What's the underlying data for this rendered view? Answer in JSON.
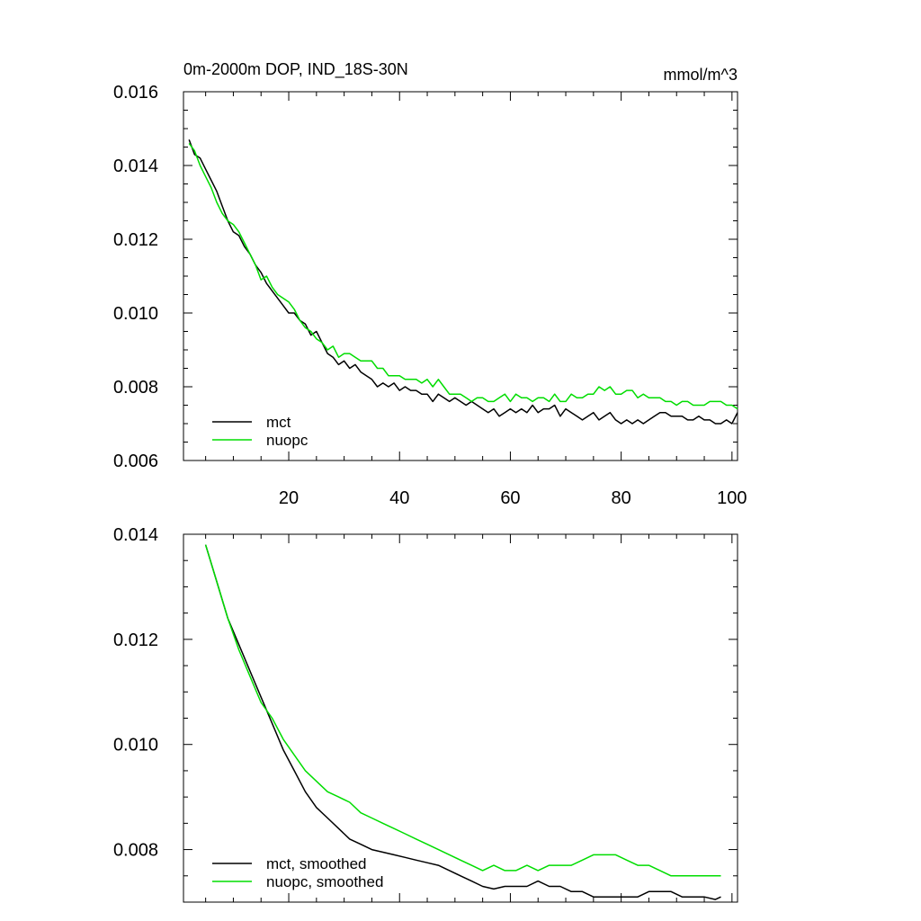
{
  "chart_data": [
    {
      "type": "line",
      "title": "0m-2000m DOP, IND_18S-30N",
      "units": "mmol/m^3",
      "xlim": [
        1,
        101
      ],
      "ylim": [
        0.006,
        0.016
      ],
      "xticks": [
        20,
        40,
        60,
        80,
        100
      ],
      "xtick_labels": [
        "20",
        "40",
        "60",
        "80",
        "100"
      ],
      "yticks": [
        0.006,
        0.008,
        0.01,
        0.012,
        0.014,
        0.016
      ],
      "ytick_labels": [
        "0.006",
        "0.008",
        "0.010",
        "0.012",
        "0.014",
        "0.016"
      ],
      "legend_position": "bottom-left",
      "series": [
        {
          "name": "mct",
          "color": "#000000",
          "x": [
            2,
            3,
            4,
            5,
            6,
            7,
            8,
            9,
            10,
            11,
            12,
            13,
            14,
            15,
            16,
            17,
            18,
            19,
            20,
            21,
            22,
            23,
            24,
            25,
            26,
            27,
            28,
            29,
            30,
            31,
            32,
            33,
            34,
            35,
            36,
            37,
            38,
            39,
            40,
            41,
            42,
            43,
            44,
            45,
            46,
            47,
            48,
            49,
            50,
            51,
            52,
            53,
            54,
            55,
            56,
            57,
            58,
            59,
            60,
            61,
            62,
            63,
            64,
            65,
            66,
            67,
            68,
            69,
            70,
            71,
            72,
            73,
            74,
            75,
            76,
            77,
            78,
            79,
            80,
            81,
            82,
            83,
            84,
            85,
            86,
            87,
            88,
            89,
            90,
            91,
            92,
            93,
            94,
            95,
            96,
            97,
            98,
            99,
            100,
            101
          ],
          "y": [
            0.0147,
            0.0143,
            0.0142,
            0.0139,
            0.0136,
            0.0133,
            0.0129,
            0.0125,
            0.0122,
            0.0121,
            0.0118,
            0.0116,
            0.0113,
            0.0111,
            0.0108,
            0.0106,
            0.0104,
            0.0102,
            0.01,
            0.01,
            0.0098,
            0.0097,
            0.0094,
            0.0095,
            0.0092,
            0.0089,
            0.0088,
            0.0086,
            0.0087,
            0.0085,
            0.0086,
            0.0084,
            0.0083,
            0.0082,
            0.008,
            0.0081,
            0.008,
            0.0081,
            0.0079,
            0.008,
            0.0079,
            0.0079,
            0.0078,
            0.0078,
            0.0076,
            0.0078,
            0.0077,
            0.0076,
            0.0077,
            0.0076,
            0.0075,
            0.0076,
            0.0075,
            0.0074,
            0.0073,
            0.0074,
            0.0072,
            0.0073,
            0.0074,
            0.0073,
            0.0074,
            0.0073,
            0.0075,
            0.0073,
            0.0074,
            0.0074,
            0.0075,
            0.0072,
            0.0074,
            0.0073,
            0.0072,
            0.0071,
            0.0072,
            0.0073,
            0.0071,
            0.0072,
            0.0073,
            0.0071,
            0.007,
            0.0071,
            0.007,
            0.0071,
            0.007,
            0.0071,
            0.0072,
            0.0073,
            0.0073,
            0.0072,
            0.0072,
            0.0072,
            0.0071,
            0.0071,
            0.0072,
            0.0071,
            0.0071,
            0.007,
            0.007,
            0.0071,
            0.007,
            0.0073
          ]
        },
        {
          "name": "nuopc",
          "color": "#00dd00",
          "x": [
            2,
            3,
            4,
            5,
            6,
            7,
            8,
            9,
            10,
            11,
            12,
            13,
            14,
            15,
            16,
            17,
            18,
            19,
            20,
            21,
            22,
            23,
            24,
            25,
            26,
            27,
            28,
            29,
            30,
            31,
            32,
            33,
            34,
            35,
            36,
            37,
            38,
            39,
            40,
            41,
            42,
            43,
            44,
            45,
            46,
            47,
            48,
            49,
            50,
            51,
            52,
            53,
            54,
            55,
            56,
            57,
            58,
            59,
            60,
            61,
            62,
            63,
            64,
            65,
            66,
            67,
            68,
            69,
            70,
            71,
            72,
            73,
            74,
            75,
            76,
            77,
            78,
            79,
            80,
            81,
            82,
            83,
            84,
            85,
            86,
            87,
            88,
            89,
            90,
            91,
            92,
            93,
            94,
            95,
            96,
            97,
            98,
            99,
            100,
            101
          ],
          "y": [
            0.0146,
            0.0144,
            0.014,
            0.0137,
            0.0134,
            0.013,
            0.0127,
            0.0125,
            0.0124,
            0.0122,
            0.0119,
            0.0116,
            0.0113,
            0.0109,
            0.011,
            0.0107,
            0.0105,
            0.0104,
            0.0103,
            0.0101,
            0.0098,
            0.0096,
            0.0095,
            0.0093,
            0.0092,
            0.009,
            0.0091,
            0.0088,
            0.0089,
            0.0089,
            0.0088,
            0.0087,
            0.0087,
            0.0087,
            0.0085,
            0.0085,
            0.0083,
            0.0083,
            0.0083,
            0.0082,
            0.0082,
            0.0082,
            0.0081,
            0.0082,
            0.008,
            0.0082,
            0.008,
            0.0078,
            0.0078,
            0.0078,
            0.0077,
            0.0076,
            0.0077,
            0.0077,
            0.0076,
            0.0076,
            0.0077,
            0.0078,
            0.0076,
            0.0078,
            0.0077,
            0.0077,
            0.0076,
            0.0077,
            0.0077,
            0.0076,
            0.0078,
            0.0076,
            0.0076,
            0.0078,
            0.0077,
            0.0077,
            0.0078,
            0.0078,
            0.008,
            0.0079,
            0.008,
            0.0078,
            0.0078,
            0.0079,
            0.0079,
            0.0077,
            0.0078,
            0.0077,
            0.0077,
            0.0077,
            0.0076,
            0.0076,
            0.0075,
            0.0076,
            0.0076,
            0.0075,
            0.0075,
            0.0075,
            0.0076,
            0.0076,
            0.0076,
            0.0075,
            0.0075,
            0.0074
          ]
        }
      ]
    },
    {
      "type": "line",
      "title": "",
      "xlim": [
        1,
        101
      ],
      "ylim": [
        0.007,
        0.014
      ],
      "xticks": [
        20,
        40,
        60,
        80,
        100
      ],
      "yticks": [
        0.008,
        0.01,
        0.012,
        0.014
      ],
      "ytick_labels": [
        "0.008",
        "0.010",
        "0.012",
        "0.014"
      ],
      "legend_position": "bottom-left",
      "series": [
        {
          "name": "mct, smoothed",
          "color": "#000000",
          "x": [
            5,
            7,
            9,
            11,
            13,
            15,
            17,
            19,
            21,
            23,
            25,
            27,
            29,
            31,
            33,
            35,
            37,
            39,
            41,
            43,
            45,
            47,
            49,
            51,
            53,
            55,
            57,
            59,
            61,
            63,
            65,
            67,
            69,
            71,
            73,
            75,
            77,
            79,
            81,
            83,
            85,
            87,
            89,
            91,
            93,
            95,
            97,
            98
          ],
          "y": [
            0.0138,
            0.0131,
            0.0124,
            0.0119,
            0.0114,
            0.0109,
            0.0104,
            0.0099,
            0.0095,
            0.0091,
            0.0088,
            0.0086,
            0.0084,
            0.0082,
            0.0081,
            0.008,
            0.00795,
            0.0079,
            0.00785,
            0.0078,
            0.00775,
            0.0077,
            0.0076,
            0.0075,
            0.0074,
            0.0073,
            0.00725,
            0.0073,
            0.0073,
            0.0073,
            0.0074,
            0.0073,
            0.0073,
            0.0072,
            0.0072,
            0.0071,
            0.0071,
            0.0071,
            0.0071,
            0.0071,
            0.0072,
            0.0072,
            0.0072,
            0.0071,
            0.0071,
            0.0071,
            0.00705,
            0.0071
          ]
        },
        {
          "name": "nuopc, smoothed",
          "color": "#00dd00",
          "x": [
            5,
            7,
            9,
            11,
            13,
            15,
            17,
            19,
            21,
            23,
            25,
            27,
            29,
            31,
            33,
            35,
            37,
            39,
            41,
            43,
            45,
            47,
            49,
            51,
            53,
            55,
            57,
            59,
            61,
            63,
            65,
            67,
            69,
            71,
            73,
            75,
            77,
            79,
            81,
            83,
            85,
            87,
            89,
            91,
            93,
            95,
            97,
            98
          ],
          "y": [
            0.0138,
            0.0131,
            0.0124,
            0.0118,
            0.0113,
            0.0108,
            0.0105,
            0.0101,
            0.0098,
            0.0095,
            0.0093,
            0.0091,
            0.009,
            0.0089,
            0.0087,
            0.0086,
            0.0085,
            0.0084,
            0.0083,
            0.0082,
            0.0081,
            0.008,
            0.0079,
            0.0078,
            0.0077,
            0.0076,
            0.0077,
            0.0076,
            0.0076,
            0.0077,
            0.0076,
            0.0077,
            0.0077,
            0.0077,
            0.0078,
            0.0079,
            0.0079,
            0.0079,
            0.0078,
            0.0077,
            0.0077,
            0.0076,
            0.0075,
            0.0075,
            0.0075,
            0.0075,
            0.0075,
            0.0075
          ]
        }
      ]
    }
  ]
}
